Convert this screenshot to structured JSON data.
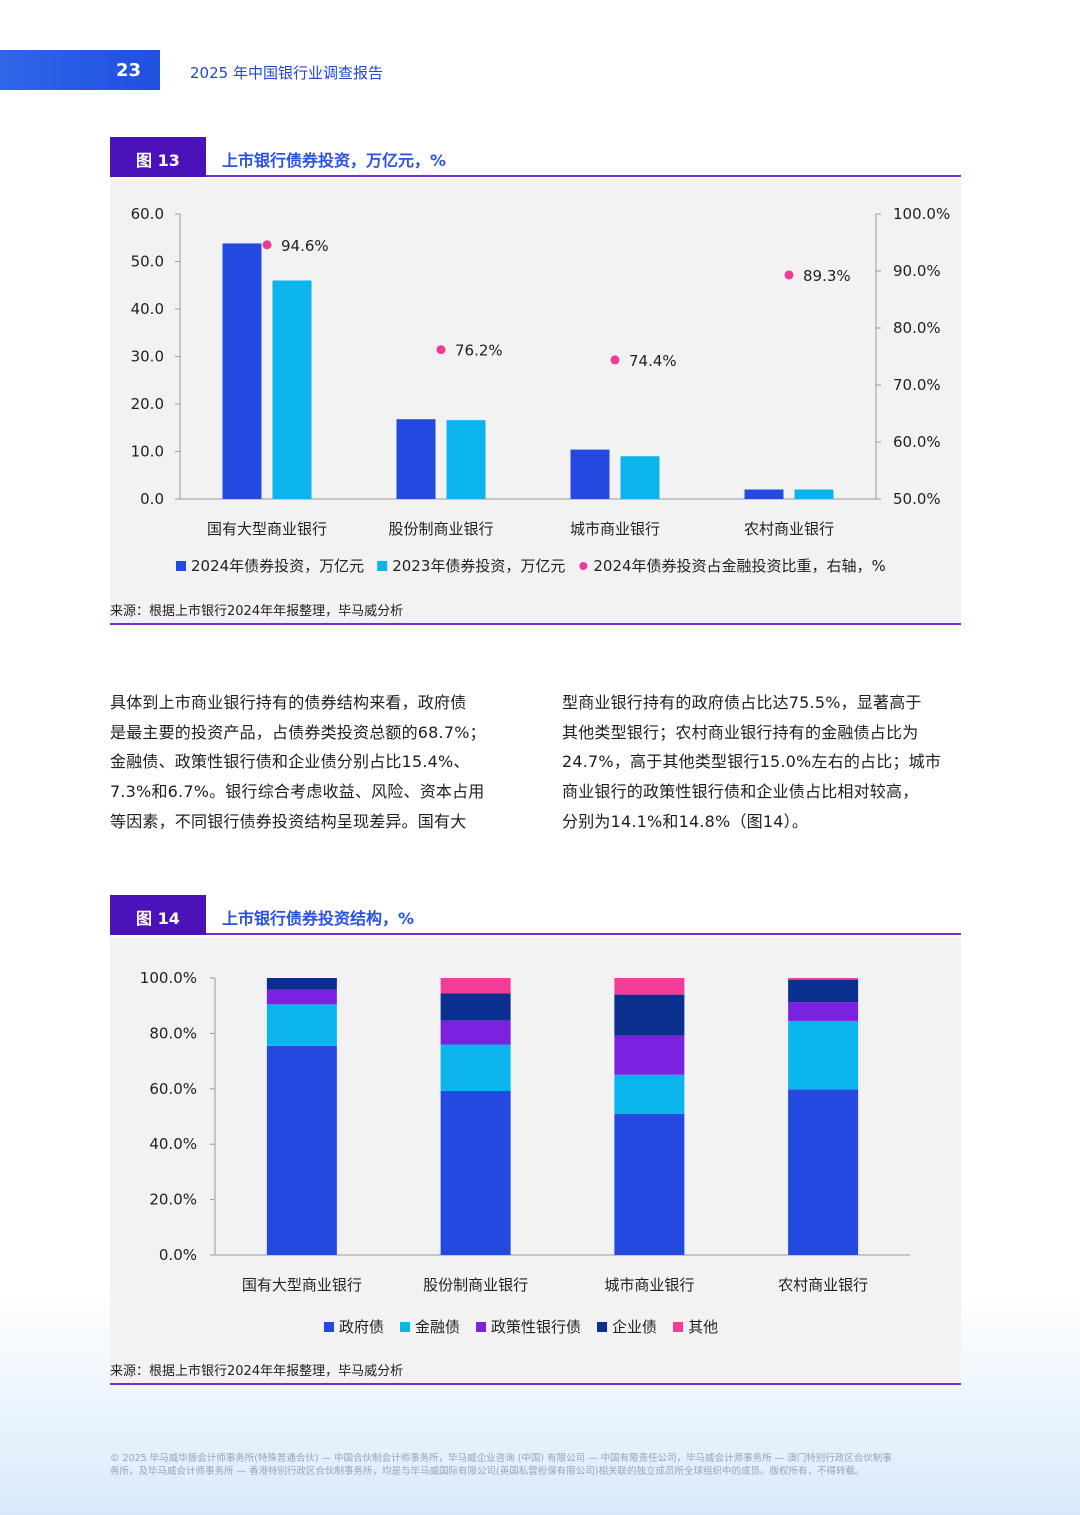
{
  "header": {
    "page_number": "23",
    "report_title": "2025 年中国银行业调查报告"
  },
  "figure13": {
    "label": "图 13",
    "title": "上市银行债券投资，万亿元，%",
    "source": "来源：根据上市银行2024年年报整理，毕马威分析",
    "chart_data": {
      "type": "bar",
      "categories": [
        "国有大型商业银行",
        "股份制商业银行",
        "城市商业银行",
        "农村商业银行"
      ],
      "series": [
        {
          "name": "2024年债券投资，万亿元",
          "type": "bar",
          "axis": "left",
          "color": "#2349e0",
          "values": [
            53.8,
            16.8,
            10.4,
            2.0
          ]
        },
        {
          "name": "2023年债券投资，万亿元",
          "type": "bar",
          "axis": "left",
          "color": "#0cb4ee",
          "values": [
            46.0,
            16.6,
            9.0,
            2.0
          ]
        },
        {
          "name": "2024年债券投资占金融投资比重，右轴，%",
          "type": "scatter",
          "axis": "right",
          "color": "#ef3a96",
          "values": [
            94.6,
            76.2,
            74.4,
            89.3
          ],
          "labels": [
            "94.6%",
            "76.2%",
            "74.4%",
            "89.3%"
          ]
        }
      ],
      "y_left": {
        "min": 0,
        "max": 60,
        "ticks": [
          "0.0",
          "10.0",
          "20.0",
          "30.0",
          "40.0",
          "50.0",
          "60.0"
        ]
      },
      "y_right": {
        "min": 50,
        "max": 100,
        "ticks": [
          "50.0%",
          "60.0%",
          "70.0%",
          "80.0%",
          "90.0%",
          "100.0%"
        ]
      },
      "legend_position": "bottom",
      "grid": false
    }
  },
  "body": {
    "left_lines": [
      "具体到上市商业银行持有的债券结构来看，政府债",
      "是最主要的投资产品，占债券类投资总额的68.7%；",
      "金融债、政策性银行债和企业债分别占比15.4%、",
      "7.3%和6.7%。银行综合考虑收益、风险、资本占用",
      "等因素，不同银行债券投资结构呈现差异。国有大"
    ],
    "right_lines": [
      "型商业银行持有的政府债占比达75.5%，显著高于",
      "其他类型银行；农村商业银行持有的金融债占比为",
      "24.7%，高于其他类型银行15.0%左右的占比；城市",
      "商业银行的政策性银行债和企业债占比相对较高，",
      "分别为14.1%和14.8%（图14）。"
    ]
  },
  "figure14": {
    "label": "图 14",
    "title": "上市银行债券投资结构，%",
    "source": "来源：根据上市银行2024年年报整理，毕马威分析",
    "chart_data": {
      "type": "bar",
      "stacked": true,
      "categories": [
        "国有大型商业银行",
        "股份制商业银行",
        "城市商业银行",
        "农村商业银行"
      ],
      "series": [
        {
          "name": "政府债",
          "color": "#2349e0",
          "values": [
            75.5,
            59.2,
            51.0,
            59.8
          ]
        },
        {
          "name": "金融债",
          "color": "#0cb4ee",
          "values": [
            15.0,
            16.8,
            14.1,
            24.7
          ]
        },
        {
          "name": "政策性银行债",
          "color": "#7a22e0",
          "values": [
            5.3,
            8.6,
            14.1,
            6.8
          ]
        },
        {
          "name": "企业债",
          "color": "#0b2f8e",
          "values": [
            4.2,
            9.8,
            14.8,
            8.1
          ]
        },
        {
          "name": "其他",
          "color": "#f23c97",
          "values": [
            0.0,
            5.6,
            6.0,
            0.6
          ]
        }
      ],
      "y": {
        "min": 0,
        "max": 100,
        "ticks": [
          "0.0%",
          "20.0%",
          "40.0%",
          "60.0%",
          "80.0%",
          "100.0%"
        ]
      },
      "legend_position": "bottom",
      "grid": false
    }
  },
  "footer": {
    "line1": "© 2025 毕马威华振会计师事务所(特殊普通合伙) — 中国合伙制会计师事务所，毕马威企业咨询 (中国) 有限公司 — 中国有限责任公司，毕马威会计师事务所 — 澳门特别行政区合伙制事",
    "line2": "务所，及毕马威会计师事务所 — 香港特别行政区合伙制事务所，均是与毕马威国际有限公司(英国私营担保有限公司)相关联的独立成员所全球组织中的成员。版权所有，不得转载。"
  },
  "colors": {
    "accent_blue": "#2a52e3",
    "accent_purple": "#4a12b8",
    "rule_purple": "#7a2ad6"
  }
}
